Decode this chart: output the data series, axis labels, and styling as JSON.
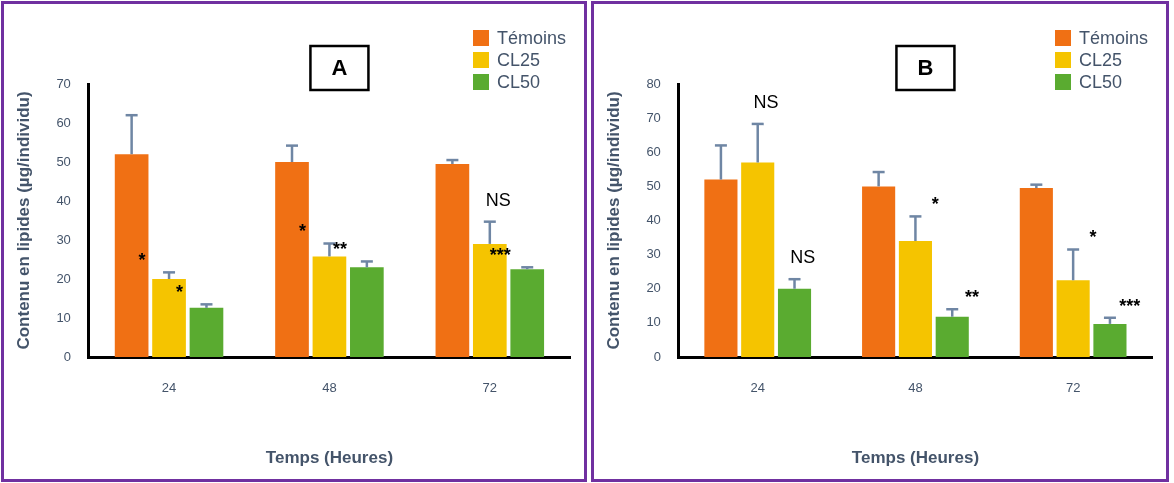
{
  "chart_data": [
    {
      "type": "bar",
      "title": "A",
      "xlabel": "Temps (Heures)",
      "ylabel": "Contenu en lipides (µg/individu)",
      "categories": [
        "24",
        "48",
        "72"
      ],
      "series": [
        {
          "name": "Témoins",
          "color": "#f07014",
          "values": [
            52,
            50,
            49.5
          ],
          "errors": [
            [
              52,
              62
            ],
            [
              50,
              54.2
            ],
            [
              49.5,
              50.5
            ]
          ]
        },
        {
          "name": "CL25",
          "color": "#f5c400",
          "values": [
            20,
            25.8,
            29
          ],
          "errors": [
            [
              20,
              21.7
            ],
            [
              25.8,
              29.1
            ],
            [
              29,
              34.7
            ]
          ]
        },
        {
          "name": "CL50",
          "color": "#5aab30",
          "values": [
            12.6,
            23,
            22.5
          ],
          "errors": [
            [
              12.6,
              13.5
            ],
            [
              23,
              24.5
            ],
            [
              22.5,
              23
            ]
          ]
        }
      ],
      "ylim": [
        0,
        70
      ],
      "yticks": [
        0,
        10,
        20,
        30,
        40,
        50,
        60,
        70
      ],
      "grid": false,
      "legend": "top right",
      "annotations": [
        "*",
        "*",
        "*",
        "**",
        "NS",
        "***"
      ]
    },
    {
      "type": "bar",
      "title": "B",
      "xlabel": "Temps (Heures)",
      "ylabel": "Contenu en lipides (µg/individu)",
      "categories": [
        "24",
        "48",
        "72"
      ],
      "series": [
        {
          "name": "Témoins",
          "color": "#f07014",
          "values": [
            52,
            50,
            49.5
          ],
          "errors": [
            [
              52,
              62
            ],
            [
              50,
              54.2
            ],
            [
              49.5,
              50.5
            ]
          ]
        },
        {
          "name": "CL25",
          "color": "#f5c400",
          "values": [
            57,
            34,
            22.5
          ],
          "errors": [
            [
              57,
              68.3
            ],
            [
              34,
              41.2
            ],
            [
              22.5,
              31.5
            ]
          ]
        },
        {
          "name": "CL50",
          "color": "#5aab30",
          "values": [
            20,
            11.8,
            9.7
          ],
          "errors": [
            [
              20,
              22.8
            ],
            [
              11.8,
              14
            ],
            [
              9.7,
              11.5
            ]
          ]
        }
      ],
      "ylim": [
        0,
        80
      ],
      "yticks": [
        0,
        10,
        20,
        30,
        40,
        50,
        60,
        70,
        80
      ],
      "grid": false,
      "legend": "top right",
      "annotations": [
        "NS",
        "NS",
        "*",
        "**",
        "*",
        "***"
      ]
    }
  ]
}
